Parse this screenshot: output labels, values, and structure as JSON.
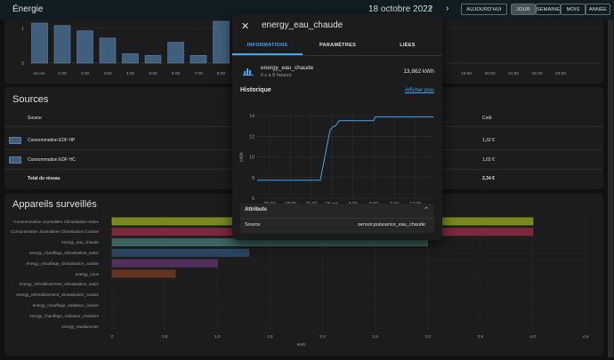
{
  "header": {
    "title": "Énergie",
    "date": "18 octobre 2022",
    "prev_icon": "chevron-left-icon",
    "next_icon": "chevron-right-icon",
    "today_label": "AUJOURD'HUI",
    "range_buttons": [
      "JOUR",
      "SEMAINE",
      "MOIS",
      "ANNÉE"
    ],
    "active_range": "JOUR"
  },
  "usage_chart": {
    "y_ticks": [
      "1",
      "0"
    ],
    "x_ticks": [
      "18 oct.",
      "1:00",
      "2:00",
      "3:00",
      "4:00",
      "5:00",
      "6:00",
      "7:00",
      "8:00",
      "19:00",
      "20:00",
      "21:00",
      "22:00",
      "23:00"
    ],
    "bar_values": [
      1.15,
      1.08,
      0.93,
      0.72,
      0.27,
      0.22,
      0.6,
      0.22,
      1.2
    ],
    "y_max": 1.2,
    "color": "#3f5f7c"
  },
  "sources": {
    "title": "Sources",
    "col_source": "Source",
    "col_cost": "Coût",
    "rows": [
      {
        "name": "Consommation EDF HP",
        "cost": "1,32 €"
      },
      {
        "name": "Consommation EDF HC",
        "cost": "1,02 €"
      }
    ],
    "total_label": "Total du réseau",
    "total_cost": "2,34 €"
  },
  "devices": {
    "title": "Appareils surveillés",
    "x_label": "kWh",
    "x_ticks": [
      "0",
      "0,5",
      "1,0",
      "1,5",
      "2,0",
      "2,5",
      "3,0",
      "3,5",
      "4,0",
      "4,5"
    ],
    "x_max": 4.5,
    "items": [
      {
        "name": "Consommation Journalière Climatisation Salon",
        "value": 4.0,
        "color": "#8a9a1e"
      },
      {
        "name": "Consommation Journalière Climatisation Cuisine",
        "value": 4.0,
        "color": "#8b2a44"
      },
      {
        "name": "energy_eau_chaude",
        "value": 3.0,
        "color": "#3f6e6a"
      },
      {
        "name": "energy_chauffage_climatisation_salon",
        "value": 1.3,
        "color": "#2d4b6e"
      },
      {
        "name": "energy_chauffage_climatisation_cuisine",
        "value": 1.0,
        "color": "#5a3266"
      },
      {
        "name": "energy_virus",
        "value": 0.6,
        "color": "#6e3a24"
      },
      {
        "name": "energy_refroidissement_climatisation_salon",
        "value": 0,
        "color": "#555555"
      },
      {
        "name": "energy_refroidissement_climatisation_cuisine",
        "value": 0,
        "color": "#555555"
      },
      {
        "name": "energy_chauffage_radiateur_cuisine",
        "value": 0,
        "color": "#555555"
      },
      {
        "name": "energy_chauffage_radiateur_chambre",
        "value": 0,
        "color": "#555555"
      },
      {
        "name": "energy_mediacenter",
        "value": 0,
        "color": "#555555"
      }
    ]
  },
  "dialog": {
    "title": "energy_eau_chaude",
    "close_icon": "close-icon",
    "tabs": [
      "INFORMATIONS",
      "PARAMÈTRES",
      "LIÉES"
    ],
    "active_tab": "INFORMATIONS",
    "entity_icon": "chart-bar-icon",
    "entity_name": "energy_eau_chaude",
    "entity_time": "Il y a 8 heures",
    "entity_value": "13,862 kWh",
    "history_title": "Historique",
    "show_more": "Afficher plus",
    "attributes_title": "Attributs",
    "attributes_chevron": "chevron-up-icon",
    "attributes": [
      {
        "key": "Source",
        "value": "sensor.puissance_eau_chaude"
      }
    ]
  },
  "chart_data": {
    "type": "line",
    "xlabel": "",
    "ylabel": "kWh",
    "x_ticks": [
      "15:00",
      "18:00",
      "21:00",
      "18 oct.",
      "3:00",
      "6:00",
      "9:00",
      "12:00"
    ],
    "y_ticks": [
      6,
      8,
      10,
      12,
      14
    ],
    "ylim": [
      6,
      14
    ],
    "x_hours": [
      15,
      24
    ],
    "series": [
      {
        "x": [
          13.2,
          21.8,
          22.3,
          23.7,
          24.1,
          24.5,
          25.0,
          27.0,
          30.0,
          30.2,
          38.6
        ],
        "y": [
          7.75,
          7.75,
          7.75,
          12.6,
          12.9,
          13.0,
          13.5,
          13.5,
          13.5,
          13.862,
          13.862
        ]
      }
    ],
    "color": "#42a5f5",
    "grid": true
  }
}
